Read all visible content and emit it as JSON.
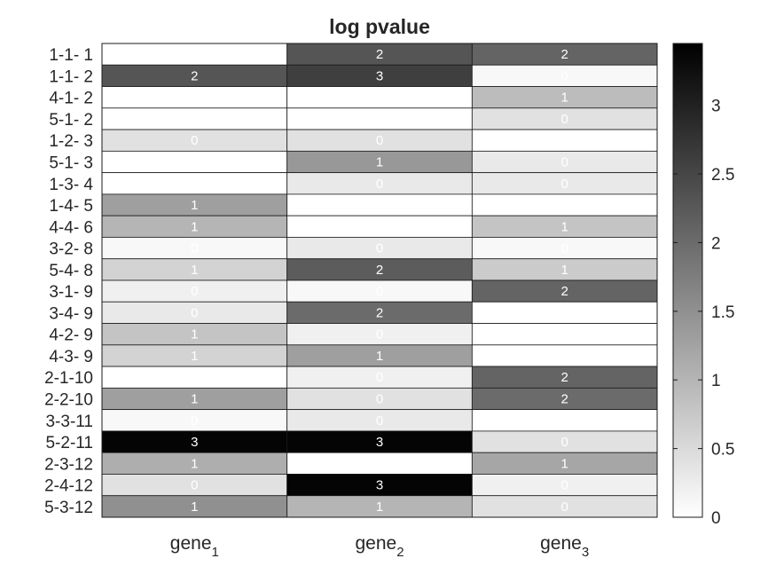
{
  "chart_data": {
    "type": "heatmap",
    "title": "log pvalue",
    "rows": [
      "1-1- 1",
      "1-1- 2",
      "4-1- 2",
      "5-1- 2",
      "1-2- 3",
      "5-1- 3",
      "1-3- 4",
      "1-4- 5",
      "4-4- 6",
      "3-2- 8",
      "5-4- 8",
      "3-1- 9",
      "3-4- 9",
      "4-2- 9",
      "4-3- 9",
      "2-1-10",
      "2-2-10",
      "3-3-11",
      "5-2-11",
      "2-3-12",
      "2-4-12",
      "5-3-12"
    ],
    "columns": [
      {
        "base": "gene",
        "sub": "1"
      },
      {
        "base": "gene",
        "sub": "2"
      },
      {
        "base": "gene",
        "sub": "3"
      }
    ],
    "values": [
      [
        0.0,
        2.3,
        2.1
      ],
      [
        2.3,
        2.6,
        0.1
      ],
      [
        0.0,
        0.0,
        0.9
      ],
      [
        0.0,
        0.0,
        0.4
      ],
      [
        0.4,
        0.4,
        0.0
      ],
      [
        0.0,
        1.4,
        0.3
      ],
      [
        0.0,
        0.3,
        0.3
      ],
      [
        1.3,
        0.0,
        0.0
      ],
      [
        1.0,
        0.0,
        0.8
      ],
      [
        0.1,
        0.3,
        0.1
      ],
      [
        0.6,
        2.2,
        0.7
      ],
      [
        0.2,
        0.1,
        2.1
      ],
      [
        0.3,
        2.0,
        0.0
      ],
      [
        0.8,
        0.2,
        0.0
      ],
      [
        0.6,
        1.3,
        0.0
      ],
      [
        0.0,
        0.2,
        2.1
      ],
      [
        1.3,
        0.4,
        2.0
      ],
      [
        0.1,
        0.3,
        0.0
      ],
      [
        3.4,
        3.4,
        0.4
      ],
      [
        1.1,
        0.0,
        1.2
      ],
      [
        0.4,
        3.4,
        0.2
      ],
      [
        1.5,
        1.0,
        0.4
      ]
    ],
    "labels": [
      [
        "",
        "2",
        "2"
      ],
      [
        "2",
        "3",
        "0"
      ],
      [
        "",
        "",
        "1"
      ],
      [
        "",
        "",
        "0"
      ],
      [
        "0",
        "0",
        ""
      ],
      [
        "",
        "1",
        "0"
      ],
      [
        "",
        "0",
        "0"
      ],
      [
        "1",
        "",
        ""
      ],
      [
        "1",
        "",
        "1"
      ],
      [
        "0",
        "0",
        "0"
      ],
      [
        "1",
        "2",
        "1"
      ],
      [
        "0",
        "0",
        "2"
      ],
      [
        "0",
        "2",
        "0"
      ],
      [
        "1",
        "0",
        "0"
      ],
      [
        "1",
        "1",
        "0"
      ],
      [
        "",
        "0",
        "2"
      ],
      [
        "1",
        "0",
        "2"
      ],
      [
        "0",
        "0",
        "0"
      ],
      [
        "3",
        "3",
        "0"
      ],
      [
        "1",
        "",
        "1"
      ],
      [
        "0",
        "3",
        "0"
      ],
      [
        "1",
        "1",
        "0"
      ]
    ],
    "colorbar": {
      "range": [
        0,
        3.45
      ],
      "ticks": [
        "0",
        "0.5",
        "1",
        "1.5",
        "2",
        "2.5",
        "3"
      ],
      "colormap": "gray reversed (white = 0, black = max)"
    }
  }
}
